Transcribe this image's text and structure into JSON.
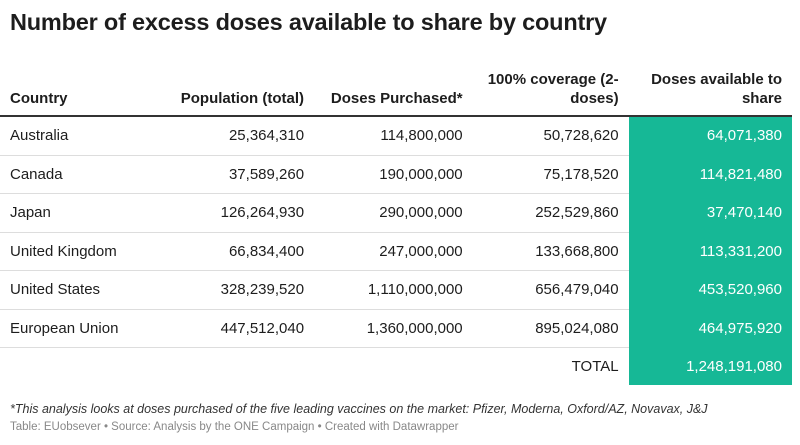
{
  "title": "Number of excess doses available to share by country",
  "chart_data": {
    "type": "table",
    "columns": [
      "Country",
      "Population (total)",
      "Doses Purchased*",
      "100% coverage (2-doses)",
      "Doses available to share"
    ],
    "rows": [
      [
        "Australia",
        "25,364,310",
        "114,800,000",
        "50,728,620",
        "64,071,380"
      ],
      [
        "Canada",
        "37,589,260",
        "190,000,000",
        "75,178,520",
        "114,821,480"
      ],
      [
        "Japan",
        "126,264,930",
        "290,000,000",
        "252,529,860",
        "37,470,140"
      ],
      [
        "United Kingdom",
        "66,834,400",
        "247,000,000",
        "133,668,800",
        "113,331,200"
      ],
      [
        "United States",
        "328,239,520",
        "1,110,000,000",
        "656,479,040",
        "453,520,960"
      ],
      [
        "European Union",
        "447,512,040",
        "1,360,000,000",
        "895,024,080",
        "464,975,920"
      ]
    ],
    "total_label": "TOTAL",
    "total_value": "1,248,191,080",
    "highlight_color": "#16b896"
  },
  "footnote": "*This analysis looks at doses purchased of the five leading vaccines on the market: Pfizer, Moderna, Oxford/AZ, Novavax, J&J",
  "source": "Table: EUobsever • Source: Analysis by the ONE Campaign • Created with Datawrapper"
}
